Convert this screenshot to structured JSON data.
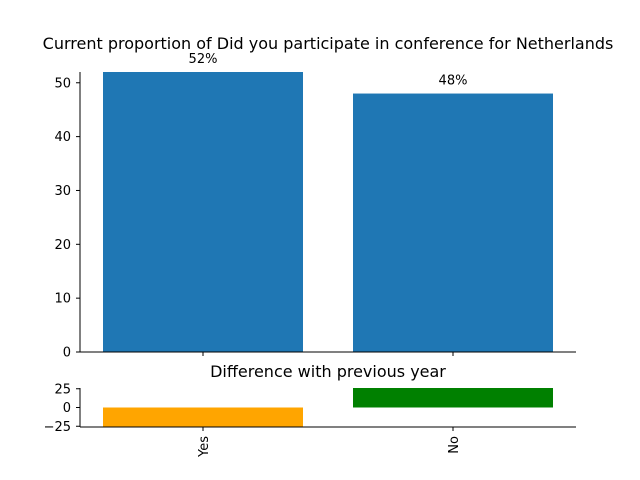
{
  "chart_data": [
    {
      "type": "bar",
      "title": "Current proportion of Did you participate in conference for Netherlands",
      "categories": [
        "Yes",
        "No"
      ],
      "values": [
        52,
        48
      ],
      "data_labels": [
        "52%",
        "48%"
      ],
      "ylim": [
        0,
        52
      ],
      "yticks": [
        0,
        10,
        20,
        30,
        40,
        50
      ],
      "colors": [
        "#1f77b4",
        "#1f77b4"
      ],
      "grid": false,
      "xlabel": "",
      "ylabel": ""
    },
    {
      "type": "bar",
      "title": "Difference with previous year",
      "categories": [
        "Yes",
        "No"
      ],
      "values": [
        -26,
        26
      ],
      "ylim": [
        -26,
        26
      ],
      "yticks": [
        -25,
        0,
        25
      ],
      "ytick_labels": [
        "−25",
        "0",
        "25"
      ],
      "colors": [
        "#ffa500",
        "#008000"
      ],
      "grid": false,
      "xlabel": "",
      "ylabel": ""
    }
  ]
}
